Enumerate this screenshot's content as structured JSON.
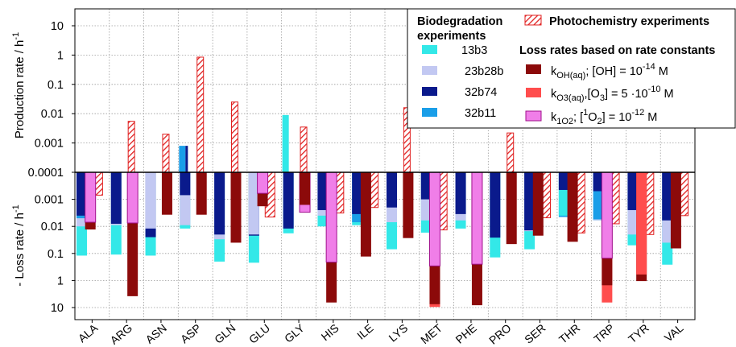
{
  "chart_data": {
    "type": "bar",
    "categories": [
      "ALA",
      "ARG",
      "ASN",
      "ASP",
      "GLN",
      "GLU",
      "GLY",
      "HIS",
      "ILE",
      "LYS",
      "MET",
      "PHE",
      "PRO",
      "SER",
      "THR",
      "TRP",
      "TYR",
      "VAL"
    ],
    "colors": {
      "13b3": "#33e8e8",
      "23b28b": "#c2c8f2",
      "32b74": "#0a1a8c",
      "32b11": "#1a9ee8",
      "photo_stroke": "#e02020",
      "koh": "#8c0a0a",
      "ko3": "#ff4d4d",
      "k1o2": "#f07ee8",
      "k1o2_stroke": "#a0108c"
    },
    "production": {
      "panel_ylabel": "Production rate / h",
      "panel_ylabel_sup": "-1",
      "yticks": [
        "10",
        "1",
        "0.1",
        "0.01",
        "0.001"
      ],
      "biodegradation": [
        {
          "category": "ASP",
          "series": "32b11",
          "value": 0.0008
        },
        {
          "category": "ASP",
          "series": "32b74",
          "value": 0.0008
        },
        {
          "category": "GLY",
          "series": "13b3",
          "value": 0.009
        }
      ],
      "photochemistry": [
        0,
        0.0055,
        0.002,
        0.85,
        0.025,
        0,
        0.0035,
        0,
        0,
        0.016,
        0,
        0,
        0.0022,
        0,
        0,
        0,
        0,
        0
      ]
    },
    "loss": {
      "panel_ylabel": "- Loss rate / h",
      "panel_ylabel_sup": "-1",
      "yticks": [
        "0.0001",
        "0.001",
        "0.01",
        "0.1",
        "1",
        "10"
      ],
      "biodegradation": {
        "13b3": [
          0.12,
          0.11,
          0.12,
          0.012,
          0.2,
          0.22,
          0.018,
          0.01,
          0.009,
          0.07,
          0.017,
          0.012,
          0.14,
          0.07,
          0.004,
          0.006,
          0.05,
          0.26
        ],
        "23b28b": [
          0.01,
          0.009,
          0.012,
          0.009,
          0.03,
          0.02,
          null,
          0.004,
          null,
          0.007,
          0.006,
          0.006,
          null,
          0.015,
          null,
          0.006,
          0.02,
          0.04
        ],
        "32b74": [
          0.004,
          0.008,
          0.025,
          0.0007,
          0.02,
          0.022,
          0.012,
          0.0025,
          0.0035,
          0.002,
          0.001,
          0.0035,
          0.026,
          0.014,
          0.00045,
          0.0005,
          0.0025,
          0.006
        ],
        "32b11": [
          0.005,
          null,
          null,
          null,
          null,
          null,
          null,
          null,
          0.007,
          null,
          null,
          null,
          null,
          null,
          0.0045,
          0.0055,
          null,
          null
        ]
      },
      "photochemistry": [
        0.0007,
        0,
        0,
        0,
        0,
        0.0045,
        0,
        0.0032,
        0.002,
        0,
        0.0135,
        0,
        0,
        0.0048,
        0.0175,
        0.008,
        0.02,
        0.004
      ],
      "koh": [
        0.013,
        3.8,
        0.0037,
        0.0037,
        0.04,
        0.0018,
        0.0016,
        6.5,
        0.13,
        0.027,
        7.5,
        8.2,
        0.045,
        0.022,
        0.037,
        1.5,
        1.05,
        0.065
      ],
      "ko3": [
        null,
        null,
        null,
        null,
        null,
        null,
        null,
        null,
        null,
        null,
        9.5,
        null,
        null,
        null,
        null,
        6.5,
        0.6,
        null
      ],
      "k1o2": [
        0.007,
        0.0075,
        null,
        null,
        null,
        0.0006,
        0.003,
        0.21,
        null,
        null,
        0.29,
        0.25,
        null,
        null,
        null,
        0.15,
        null,
        null
      ]
    },
    "legend": {
      "biodegradation_title_line1": "Biodegradation",
      "biodegradation_title_line2": "experiments",
      "photo_title": "Photochemistry experiments",
      "rate_title": "Loss rates based on rate constants",
      "series_13b3": "13b3",
      "series_23b28b": "23b28b",
      "series_32b74": "32b74",
      "series_32b11": "32b11",
      "koh": {
        "k": "k",
        "sub": "OH(aq)",
        "text": "; [OH] = 10",
        "sup": "-14",
        "unit": " M"
      },
      "ko3": {
        "k": "k",
        "sub": "O3(aq)",
        "text": ",[O",
        "sub2": "3",
        "text2": "] = 5 ·10",
        "sup": "-10",
        "unit": " M"
      },
      "k1o2": {
        "k": "k",
        "sub": "1O2",
        "text": "; [",
        "sup1": "1",
        "text2": "O",
        "sub2": "2",
        "text3": "] = 10",
        "sup": "-12",
        "unit": " M"
      }
    }
  }
}
